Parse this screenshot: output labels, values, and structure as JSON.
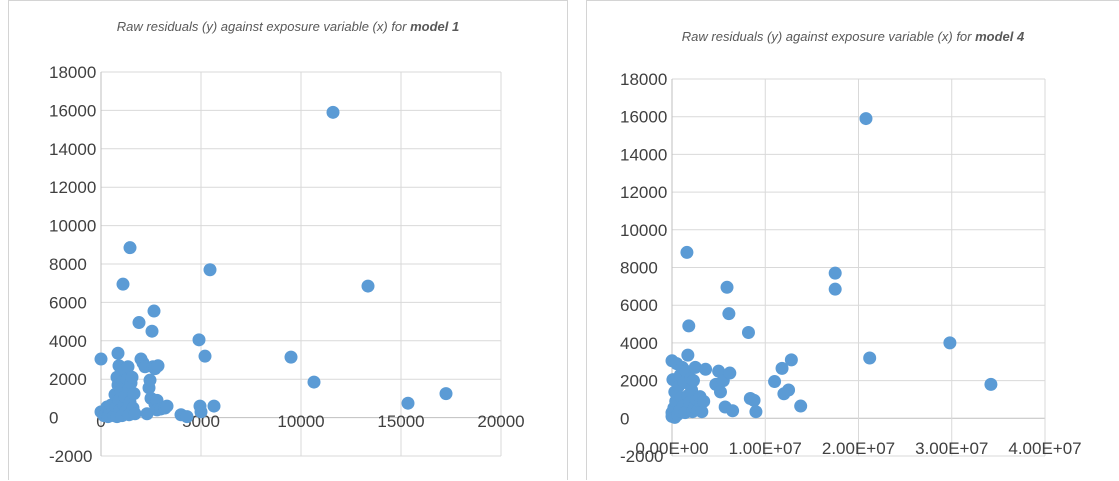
{
  "chart_data": [
    {
      "type": "scatter",
      "title_prefix": "Raw residuals (y) against exposure variable (x) for ",
      "title_bold": "model 1",
      "ylim": [
        -2000,
        18000
      ],
      "y_ticks": [
        "-2000",
        "0",
        "2000",
        "4000",
        "6000",
        "8000",
        "10000",
        "12000",
        "14000",
        "16000",
        "18000"
      ],
      "xlim": [
        0,
        20000
      ],
      "x_ticks": [
        "0",
        "5000",
        "10000",
        "15000",
        "20000"
      ],
      "grid": true,
      "color": "#5b9bd5",
      "points": [
        [
          0,
          3050
        ],
        [
          0,
          300
        ],
        [
          150,
          100
        ],
        [
          250,
          200
        ],
        [
          300,
          550
        ],
        [
          350,
          50
        ],
        [
          400,
          150
        ],
        [
          450,
          300
        ],
        [
          500,
          650
        ],
        [
          600,
          400
        ],
        [
          650,
          100
        ],
        [
          700,
          1200
        ],
        [
          750,
          550
        ],
        [
          800,
          2100
        ],
        [
          800,
          50
        ],
        [
          850,
          3350
        ],
        [
          850,
          1700
        ],
        [
          900,
          900
        ],
        [
          900,
          2700
        ],
        [
          950,
          400
        ],
        [
          1000,
          1400
        ],
        [
          1000,
          2300
        ],
        [
          1050,
          100
        ],
        [
          1100,
          6950
        ],
        [
          1100,
          1900
        ],
        [
          1150,
          650
        ],
        [
          1200,
          2500
        ],
        [
          1200,
          1100
        ],
        [
          1250,
          350
        ],
        [
          1300,
          2000
        ],
        [
          1350,
          2650
        ],
        [
          1400,
          1500
        ],
        [
          1400,
          150
        ],
        [
          1450,
          8850
        ],
        [
          1450,
          800
        ],
        [
          1500,
          1800
        ],
        [
          1550,
          2100
        ],
        [
          1600,
          500
        ],
        [
          1650,
          1250
        ],
        [
          1700,
          200
        ],
        [
          1900,
          4950
        ],
        [
          2000,
          3050
        ],
        [
          2100,
          2850
        ],
        [
          2200,
          2650
        ],
        [
          2300,
          200
        ],
        [
          2400,
          1550
        ],
        [
          2450,
          1950
        ],
        [
          2500,
          1000
        ],
        [
          2550,
          4500
        ],
        [
          2600,
          2650
        ],
        [
          2650,
          5550
        ],
        [
          2700,
          700
        ],
        [
          2700,
          2550
        ],
        [
          2800,
          900
        ],
        [
          2800,
          400
        ],
        [
          2850,
          2700
        ],
        [
          3000,
          450
        ],
        [
          3200,
          500
        ],
        [
          3300,
          600
        ],
        [
          4000,
          150
        ],
        [
          4300,
          50
        ],
        [
          4900,
          4050
        ],
        [
          4950,
          600
        ],
        [
          5000,
          300
        ],
        [
          5200,
          3200
        ],
        [
          5450,
          7700
        ],
        [
          5650,
          600
        ],
        [
          9500,
          3150
        ],
        [
          10650,
          1850
        ],
        [
          11600,
          15900
        ],
        [
          13350,
          6850
        ],
        [
          15350,
          750
        ],
        [
          17250,
          1250
        ]
      ]
    },
    {
      "type": "scatter",
      "title_prefix": "Raw residuals (y) against exposure variable (x) for ",
      "title_bold": "model 4",
      "ylim": [
        -2000,
        18000
      ],
      "y_ticks": [
        "-2000",
        "0",
        "2000",
        "4000",
        "6000",
        "8000",
        "10000",
        "12000",
        "14000",
        "16000",
        "18000"
      ],
      "xlim": [
        0,
        40000000
      ],
      "x_ticks": [
        "0.00E+00",
        "1.00E+07",
        "2.00E+07",
        "3.00E+07",
        "4.00E+07"
      ],
      "grid": true,
      "color": "#5b9bd5",
      "points": [
        [
          0,
          3050
        ],
        [
          0,
          300
        ],
        [
          0,
          100
        ],
        [
          100000,
          2050
        ],
        [
          200000,
          550
        ],
        [
          300000,
          1400
        ],
        [
          300000,
          50
        ],
        [
          400000,
          900
        ],
        [
          500000,
          2900
        ],
        [
          600000,
          200
        ],
        [
          700000,
          1700
        ],
        [
          800000,
          400
        ],
        [
          900000,
          2300
        ],
        [
          1000000,
          1100
        ],
        [
          1100000,
          2700
        ],
        [
          1200000,
          650
        ],
        [
          1300000,
          1900
        ],
        [
          1400000,
          300
        ],
        [
          1500000,
          2500
        ],
        [
          1600000,
          8800
        ],
        [
          1700000,
          3350
        ],
        [
          1700000,
          1200
        ],
        [
          1800000,
          4900
        ],
        [
          1900000,
          850
        ],
        [
          2000000,
          2100
        ],
        [
          2100000,
          1500
        ],
        [
          2200000,
          350
        ],
        [
          2300000,
          2000
        ],
        [
          2400000,
          600
        ],
        [
          2500000,
          2700
        ],
        [
          2600000,
          1000
        ],
        [
          2800000,
          450
        ],
        [
          3000000,
          1150
        ],
        [
          3100000,
          800
        ],
        [
          3200000,
          350
        ],
        [
          3400000,
          900
        ],
        [
          3600000,
          2600
        ],
        [
          4700000,
          1800
        ],
        [
          5000000,
          2500
        ],
        [
          5200000,
          1400
        ],
        [
          5500000,
          2000
        ],
        [
          5700000,
          600
        ],
        [
          5900000,
          6950
        ],
        [
          6100000,
          5550
        ],
        [
          6200000,
          2400
        ],
        [
          6500000,
          400
        ],
        [
          8200000,
          4550
        ],
        [
          8400000,
          1050
        ],
        [
          8800000,
          950
        ],
        [
          9000000,
          350
        ],
        [
          11000000,
          1950
        ],
        [
          11800000,
          2650
        ],
        [
          12000000,
          1300
        ],
        [
          12500000,
          1500
        ],
        [
          12800000,
          3100
        ],
        [
          13800000,
          650
        ],
        [
          17500000,
          7700
        ],
        [
          17500000,
          6850
        ],
        [
          20800000,
          15900
        ],
        [
          21200000,
          3200
        ],
        [
          29800000,
          4000
        ],
        [
          34200000,
          1800
        ]
      ]
    }
  ]
}
